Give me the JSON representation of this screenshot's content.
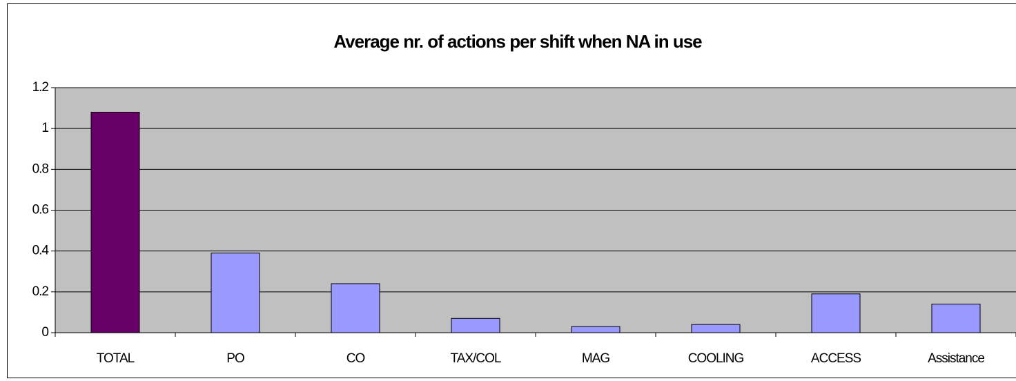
{
  "chart_data": {
    "type": "bar",
    "title": "Average nr. of actions per shift when NA in use",
    "categories": [
      "TOTAL",
      "PO",
      "CO",
      "TAX/COL",
      "MAG",
      "COOLING",
      "ACCESS",
      "Assistance"
    ],
    "values": [
      1.08,
      0.39,
      0.24,
      0.07,
      0.03,
      0.04,
      0.19,
      0.14
    ],
    "colors": [
      "#660066",
      "#9999ff",
      "#9999ff",
      "#9999ff",
      "#9999ff",
      "#9999ff",
      "#9999ff",
      "#9999ff"
    ],
    "ylim": [
      0,
      1.2
    ],
    "yticks": [
      0,
      0.2,
      0.4,
      0.6,
      0.8,
      1,
      1.2
    ],
    "grid": true
  }
}
